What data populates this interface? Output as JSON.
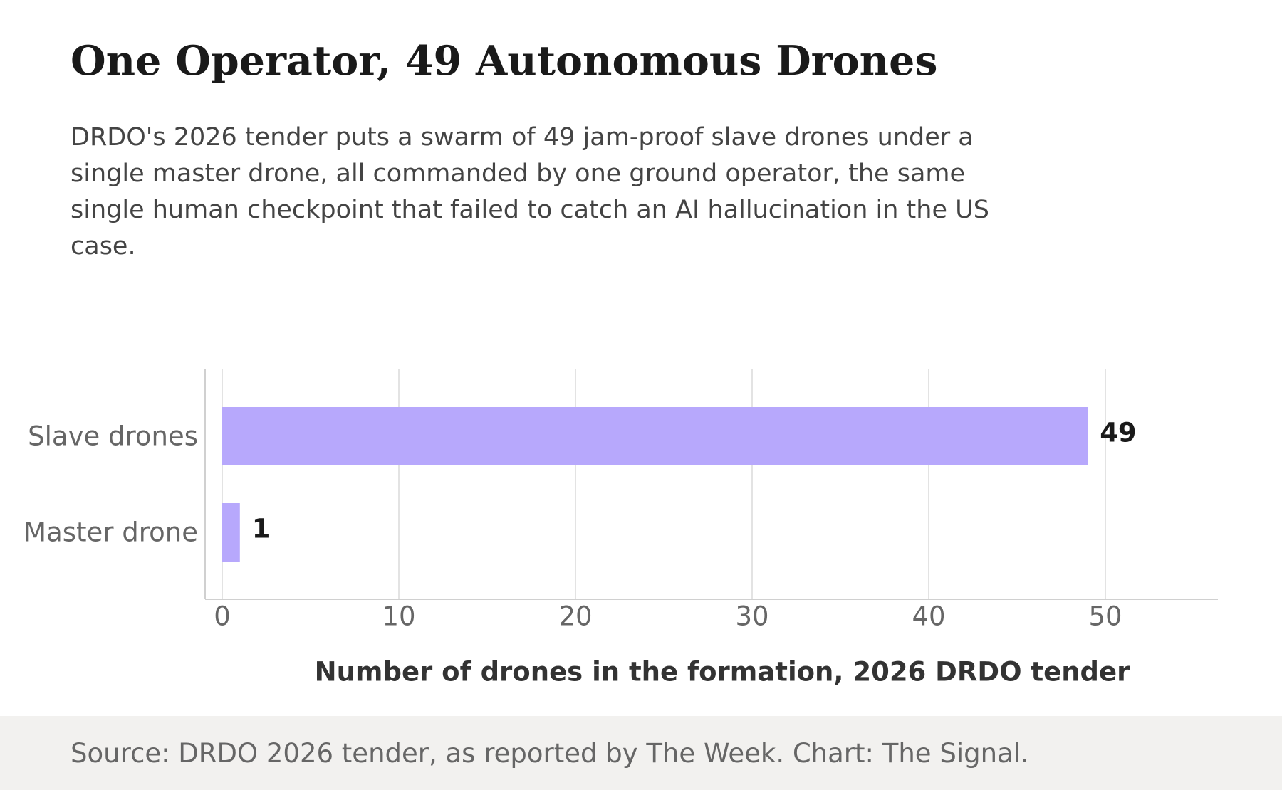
{
  "header": {
    "title": "One Operator, 49 Autonomous Drones",
    "subtitle": "DRDO's 2026 tender puts a swarm of 49 jam-proof slave drones under a single master drone, all commanded by one ground operator, the same single human checkpoint that failed to catch an AI hallucination in the US case."
  },
  "footer": {
    "source": "Source: DRDO 2026 tender, as reported by The Week. Chart: The Signal."
  },
  "colors": {
    "bar": "#b7a8fc",
    "grid": "#e3e3e3",
    "axis": "#d0d0d0",
    "tick_text": "#666666",
    "value_label": "#1a1a1a",
    "axis_title": "#333333",
    "footer_bg": "#f2f1ef"
  },
  "chart_data": {
    "type": "bar",
    "orientation": "horizontal",
    "categories": [
      "Slave drones",
      "Master drone"
    ],
    "values": [
      49,
      1
    ],
    "value_labels": [
      "49",
      "1"
    ],
    "xlabel": "Number of drones in the formation, 2026 DRDO tender",
    "ylabel": "",
    "xlim": [
      0,
      56
    ],
    "xticks": [
      0,
      10,
      20,
      30,
      40,
      50
    ],
    "grid": "vertical",
    "legend": "none"
  }
}
